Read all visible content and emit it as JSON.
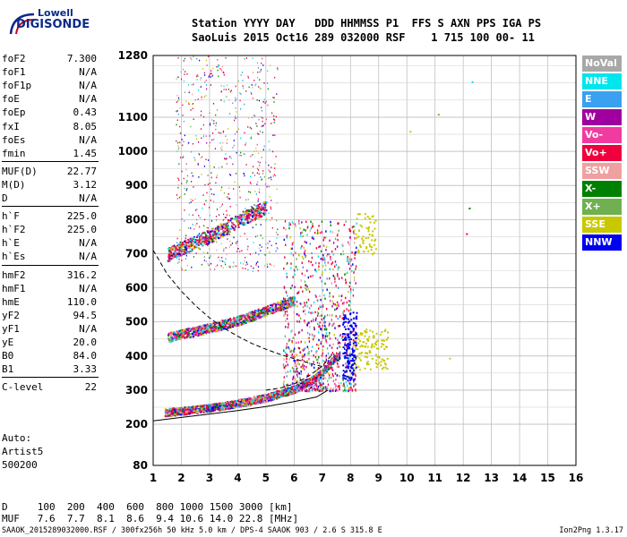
{
  "logo": {
    "top_text": "Lowell",
    "main_text": "DIGISONDE"
  },
  "header": {
    "line1": "Station YYYY DAY   DDD HHMMSS P1  FFS S AXN PPS IGA PS",
    "line2": "SaoLuis 2015 Oct16 289 032000 RSF    1 715 100 00- 11"
  },
  "params": [
    {
      "k": "foF2",
      "v": "7.300"
    },
    {
      "k": "foF1",
      "v": "N/A"
    },
    {
      "k": "foF1p",
      "v": "N/A"
    },
    {
      "k": "foE",
      "v": "N/A"
    },
    {
      "k": "foEp",
      "v": "0.43"
    },
    {
      "k": "fxI",
      "v": "8.05"
    },
    {
      "k": "foEs",
      "v": "N/A"
    },
    {
      "k": "fmin",
      "v": "1.45"
    },
    {
      "k": "MUF(D)",
      "v": "22.77"
    },
    {
      "k": "M(D)",
      "v": "3.12"
    },
    {
      "k": "D",
      "v": "N/A"
    },
    {
      "k": "h`F",
      "v": "225.0"
    },
    {
      "k": "h`F2",
      "v": "225.0"
    },
    {
      "k": "h`E",
      "v": "N/A"
    },
    {
      "k": "h`Es",
      "v": "N/A"
    },
    {
      "k": "hmF2",
      "v": "316.2"
    },
    {
      "k": "hmF1",
      "v": "N/A"
    },
    {
      "k": "hmE",
      "v": "110.0"
    },
    {
      "k": "yF2",
      "v": "94.5"
    },
    {
      "k": "yF1",
      "v": "N/A"
    },
    {
      "k": "yE",
      "v": "20.0"
    },
    {
      "k": "B0",
      "v": "84.0"
    },
    {
      "k": "B1",
      "v": "3.33"
    },
    {
      "k": "C-level",
      "v": "22"
    }
  ],
  "auto": {
    "l1": "Auto:",
    "l2": "Artist5",
    "l3": "500200"
  },
  "muf_table": {
    "d_row": "D     100  200  400  600  800 1000 1500 3000 [km]",
    "muf_row": "MUF   7.6  7.7  8.1  8.6  9.4 10.6 14.0 22.8 [MHz]"
  },
  "footer": {
    "left": "SAAOK_2015289032000.RSF / 300fx256h 50 kHz 5.0 km / DPS-4 SAAOK 903 / 2.6 S 315.8 E",
    "right": "Ion2Png 1.3.17"
  },
  "legend": [
    {
      "label": "NoVal",
      "color": "#a8a8a8"
    },
    {
      "label": "NNE",
      "color": "#00e5ee"
    },
    {
      "label": "E",
      "color": "#3aa0f0"
    },
    {
      "label": "W",
      "color": "#a000a0"
    },
    {
      "label": "Vo-",
      "color": "#f03ca0"
    },
    {
      "label": "Vo+",
      "color": "#f0003c"
    },
    {
      "label": "SSW",
      "color": "#f0a0a0"
    },
    {
      "label": "X-",
      "color": "#008000"
    },
    {
      "label": "X+",
      "color": "#70b050"
    },
    {
      "label": "SSE",
      "color": "#c8c800"
    },
    {
      "label": "NNW",
      "color": "#0000f0"
    }
  ],
  "chart_data": {
    "type": "scatter",
    "xlim": [
      1,
      16
    ],
    "ylim": [
      80,
      1280
    ],
    "x_ticks": [
      "1",
      "2",
      "3",
      "4",
      "5",
      "6",
      "7",
      "8",
      "9",
      "10",
      "11",
      "12",
      "13",
      "14",
      "15",
      "16"
    ],
    "y_ticks": [
      "80",
      "200",
      "300",
      "400",
      "500",
      "600",
      "700",
      "800",
      "900",
      "1000",
      "1100",
      "1280"
    ],
    "grid": true,
    "traces": [
      {
        "name": "F trace",
        "mode": "Vo+",
        "points": [
          [
            1.4,
            232
          ],
          [
            2,
            236
          ],
          [
            3,
            245
          ],
          [
            4,
            258
          ],
          [
            5,
            275
          ],
          [
            6,
            300
          ],
          [
            6.6,
            325
          ],
          [
            7,
            350
          ],
          [
            7.3,
            380
          ],
          [
            7.6,
            400
          ]
        ]
      },
      {
        "name": "2F trace",
        "mode": "Vo+",
        "points": [
          [
            1.5,
            450
          ],
          [
            2,
            460
          ],
          [
            3,
            478
          ],
          [
            4,
            500
          ],
          [
            5,
            528
          ],
          [
            6,
            560
          ]
        ]
      },
      {
        "name": "3F trace",
        "mode": "Vo+",
        "points": [
          [
            1.5,
            690
          ],
          [
            2,
            710
          ],
          [
            3,
            745
          ],
          [
            4,
            790
          ],
          [
            5,
            830
          ]
        ]
      }
    ],
    "profile_solid": [
      [
        1,
        210
      ],
      [
        2,
        220
      ],
      [
        3,
        230
      ],
      [
        4,
        240
      ],
      [
        5,
        252
      ],
      [
        6,
        266
      ],
      [
        6.8,
        280
      ],
      [
        7.2,
        300
      ]
    ],
    "profile_dashed": [
      [
        1,
        710
      ],
      [
        1.5,
        640
      ],
      [
        2,
        590
      ],
      [
        2.5,
        548
      ],
      [
        3,
        512
      ],
      [
        3.5,
        482
      ],
      [
        4,
        458
      ],
      [
        4.5,
        437
      ],
      [
        5,
        420
      ],
      [
        5.5,
        405
      ],
      [
        6,
        392
      ],
      [
        6.5,
        380
      ],
      [
        7,
        369
      ]
    ],
    "profile_dashed2": [
      [
        5,
        300
      ],
      [
        5.5,
        306
      ],
      [
        6,
        318
      ],
      [
        6.5,
        340
      ],
      [
        7,
        370
      ],
      [
        7.3,
        400
      ]
    ]
  }
}
